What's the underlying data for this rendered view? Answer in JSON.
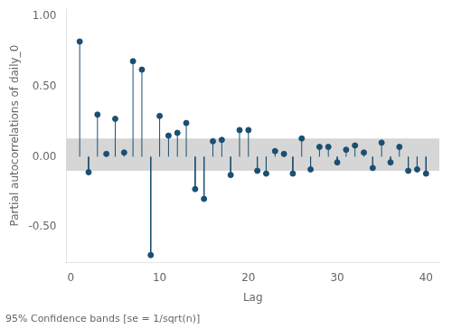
{
  "chart_data": {
    "type": "stem",
    "x": [
      1,
      2,
      3,
      4,
      5,
      6,
      7,
      8,
      9,
      10,
      11,
      12,
      13,
      14,
      15,
      16,
      17,
      18,
      19,
      20,
      21,
      22,
      23,
      24,
      25,
      26,
      27,
      28,
      29,
      30,
      31,
      32,
      33,
      34,
      35,
      36,
      37,
      38,
      39,
      40
    ],
    "values": [
      0.82,
      -0.11,
      0.3,
      0.02,
      0.27,
      0.03,
      0.68,
      0.62,
      -0.7,
      0.29,
      0.15,
      0.17,
      0.24,
      -0.23,
      -0.3,
      0.11,
      0.12,
      -0.13,
      0.19,
      0.19,
      -0.1,
      -0.12,
      0.04,
      0.02,
      -0.12,
      0.13,
      -0.09,
      0.07,
      0.07,
      -0.04,
      0.05,
      0.08,
      0.03,
      -0.08,
      0.1,
      -0.04,
      0.07,
      -0.1,
      -0.09,
      -0.12
    ],
    "ci_lower": -0.1,
    "ci_upper": 0.13,
    "color": "#1b4f72",
    "xlabel": "Lag",
    "ylabel": "Partial autocorrelations of daily_0",
    "footnote": "95% Confidence bands [se = 1/sqrt(n)]",
    "xlim": [
      -0.5,
      41.5
    ],
    "xticks": [
      0,
      10,
      20,
      30,
      40
    ],
    "ylim": [
      -0.75,
      1.05
    ],
    "yticks": [
      {
        "value": -0.5,
        "label": "-0.50"
      },
      {
        "value": 0,
        "label": "0.00"
      },
      {
        "value": 0.5,
        "label": "0.50"
      },
      {
        "value": 1,
        "label": "1.00"
      }
    ],
    "grid": false
  }
}
